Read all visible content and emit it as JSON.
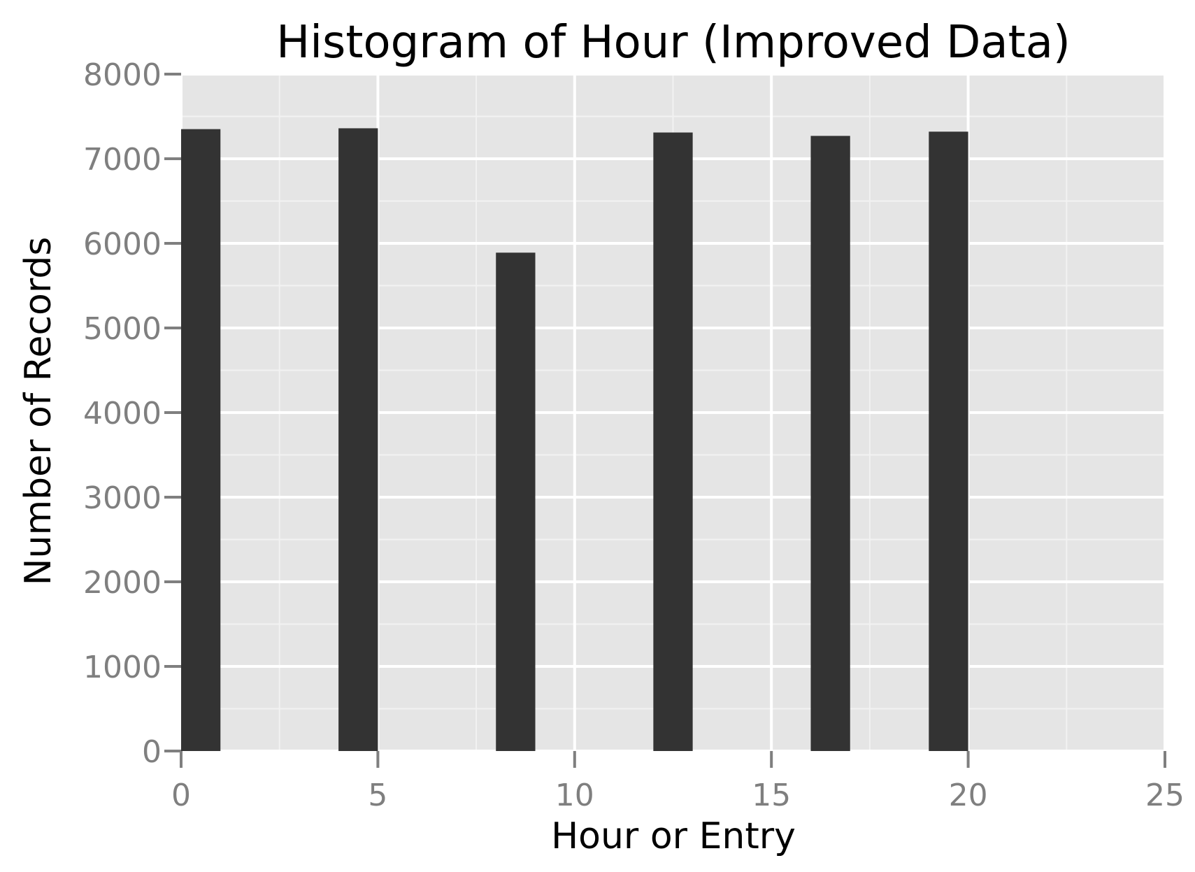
{
  "chart_data": {
    "type": "bar",
    "title": "Histogram of Hour (Improved Data)",
    "xlabel": "Hour or Entry",
    "ylabel": "Number of Records",
    "xlim": [
      0,
      25
    ],
    "ylim": [
      0,
      8000
    ],
    "x_ticks": [
      "0",
      "5",
      "10",
      "15",
      "20",
      "25"
    ],
    "y_ticks": [
      "0",
      "1000",
      "2000",
      "3000",
      "4000",
      "5000",
      "6000",
      "7000",
      "8000"
    ],
    "bins": [
      {
        "x_start": 0,
        "x_end": 1,
        "value": 7350
      },
      {
        "x_start": 4,
        "x_end": 5,
        "value": 7360
      },
      {
        "x_start": 8,
        "x_end": 9,
        "value": 5890
      },
      {
        "x_start": 12,
        "x_end": 13,
        "value": 7310
      },
      {
        "x_start": 16,
        "x_end": 17,
        "value": 7270
      },
      {
        "x_start": 19,
        "x_end": 20,
        "value": 7320
      }
    ],
    "grid": true,
    "colors": {
      "panel": "#e5e5e5",
      "grid_major": "#ffffff",
      "grid_minor": "#f2f2f2",
      "bar": "#333333",
      "tick_text": "#7f7f7f",
      "text": "#000000"
    }
  }
}
